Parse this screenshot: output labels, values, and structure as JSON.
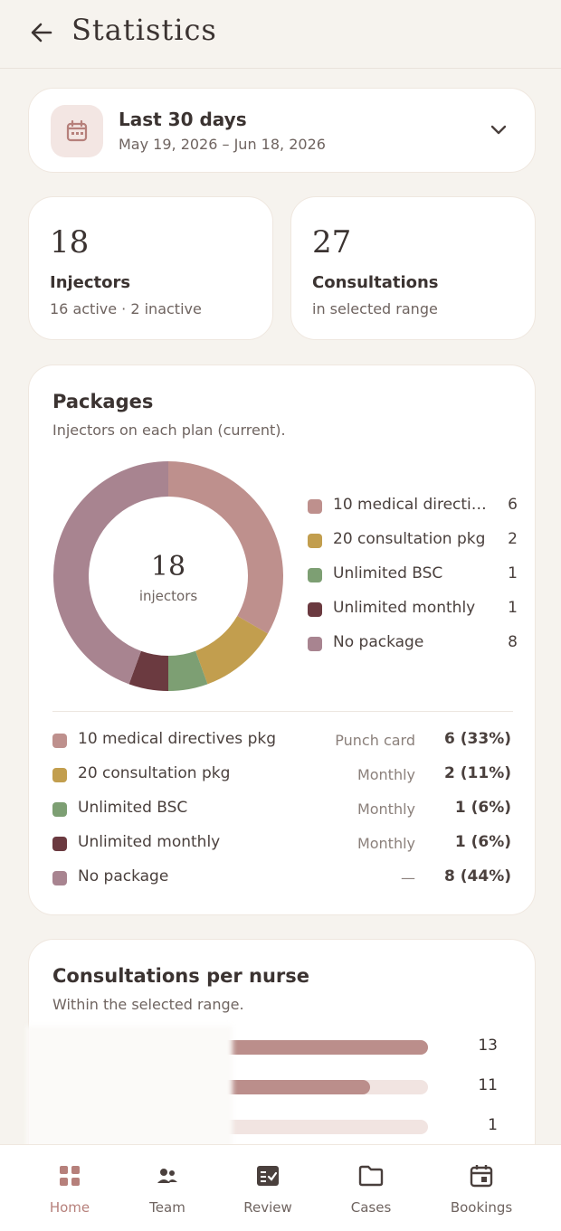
{
  "header": {
    "title": "Statistics"
  },
  "range": {
    "title": "Last 30 days",
    "dates": "May 19, 2026 – Jun 18, 2026"
  },
  "stats": {
    "injectors": {
      "value": "18",
      "label": "Injectors",
      "sub": "16 active · 2 inactive"
    },
    "consultations": {
      "value": "27",
      "label": "Consultations",
      "sub": "in selected range"
    }
  },
  "packages": {
    "title": "Packages",
    "subtitle": "Injectors on each plan (current).",
    "total": "18",
    "total_label": "injectors",
    "legend": [
      {
        "name": "10 medical directives pkg",
        "count": "6",
        "color": "#be908d"
      },
      {
        "name": "20 consultation pkg",
        "count": "2",
        "color": "#c29e4e"
      },
      {
        "name": "Unlimited BSC",
        "count": "1",
        "color": "#7d9f73"
      },
      {
        "name": "Unlimited monthly",
        "count": "1",
        "color": "#6b3a40"
      },
      {
        "name": "No package",
        "count": "8",
        "color": "#a88490"
      }
    ],
    "rows": [
      {
        "name": "10 medical directives pkg",
        "type": "Punch card",
        "value": "6 (33%)"
      },
      {
        "name": "20 consultation pkg",
        "type": "Monthly",
        "value": "2 (11%)"
      },
      {
        "name": "Unlimited BSC",
        "type": "Monthly",
        "value": "1 (6%)"
      },
      {
        "name": "Unlimited monthly",
        "type": "Monthly",
        "value": "1 (6%)"
      },
      {
        "name": "No package",
        "type": "—",
        "value": "8 (44%)"
      }
    ]
  },
  "chart_data": {
    "type": "pie",
    "categories": [
      "10 medical directives pkg",
      "20 consultation pkg",
      "Unlimited BSC",
      "Unlimited monthly",
      "No package"
    ],
    "values": [
      6,
      2,
      1,
      1,
      8
    ]
  },
  "nurses": {
    "title": "Consultations per nurse",
    "subtitle": "Within the selected range.",
    "bars": [
      {
        "value": 13,
        "label": "13"
      },
      {
        "value": 11,
        "label": "11"
      },
      {
        "value": 1,
        "label": "1"
      }
    ]
  },
  "nav": {
    "items": [
      {
        "label": "Home",
        "icon": "home-icon"
      },
      {
        "label": "Team",
        "icon": "team-icon"
      },
      {
        "label": "Review",
        "icon": "review-icon"
      },
      {
        "label": "Cases",
        "icon": "folder-icon"
      },
      {
        "label": "Bookings",
        "icon": "calendar-icon"
      }
    ]
  }
}
